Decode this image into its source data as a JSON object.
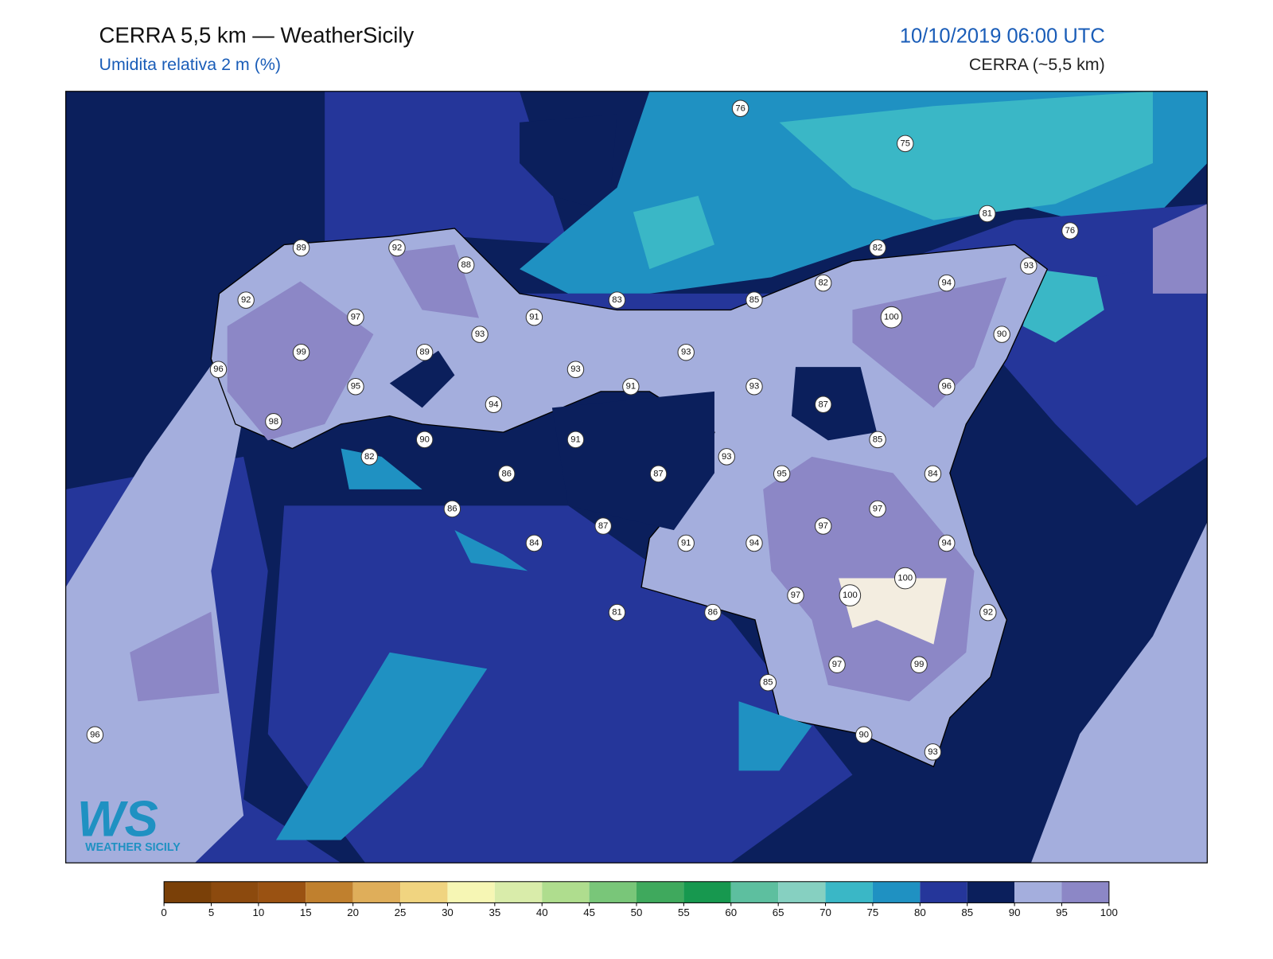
{
  "header": {
    "title": "CERRA 5,5 km — WeatherSicily",
    "subtitle": "Umidita relativa 2 m (%)",
    "datetime": "10/10/2019 06:00 UTC",
    "model": "CERRA (~5,5 km)"
  },
  "stations": [
    76,
    75,
    81,
    76,
    82,
    93,
    94,
    82,
    85,
    83,
    89,
    92,
    88,
    92,
    97,
    91,
    93,
    100,
    90,
    99,
    89,
    93,
    93,
    96,
    91,
    93,
    95,
    96,
    94,
    87,
    98,
    90,
    91,
    85,
    82,
    93,
    86,
    87,
    95,
    84,
    86,
    97,
    97,
    87,
    91,
    94,
    84,
    94,
    100,
    100,
    97,
    92,
    81,
    86,
    97,
    99,
    85,
    96,
    90,
    93
  ],
  "colorbar": {
    "ticks": [
      0,
      5,
      10,
      15,
      20,
      25,
      30,
      35,
      40,
      45,
      50,
      55,
      60,
      65,
      70,
      75,
      80,
      85,
      90,
      95,
      100
    ],
    "colors": [
      "#7a4008",
      "#8c4a0e",
      "#9a5212",
      "#c0802e",
      "#dfae5a",
      "#f0d480",
      "#f6f6b4",
      "#d9ecaa",
      "#afdd8e",
      "#79c679",
      "#3fa95d",
      "#17984f",
      "#5dbf9f",
      "#86d0c1",
      "#3ab7c6",
      "#1f91c2",
      "#25369a",
      "#0b1f5c",
      "#a4aedd",
      "#8c87c6"
    ]
  },
  "logo": {
    "mark": "WS",
    "name": "WEATHER SICILY"
  }
}
